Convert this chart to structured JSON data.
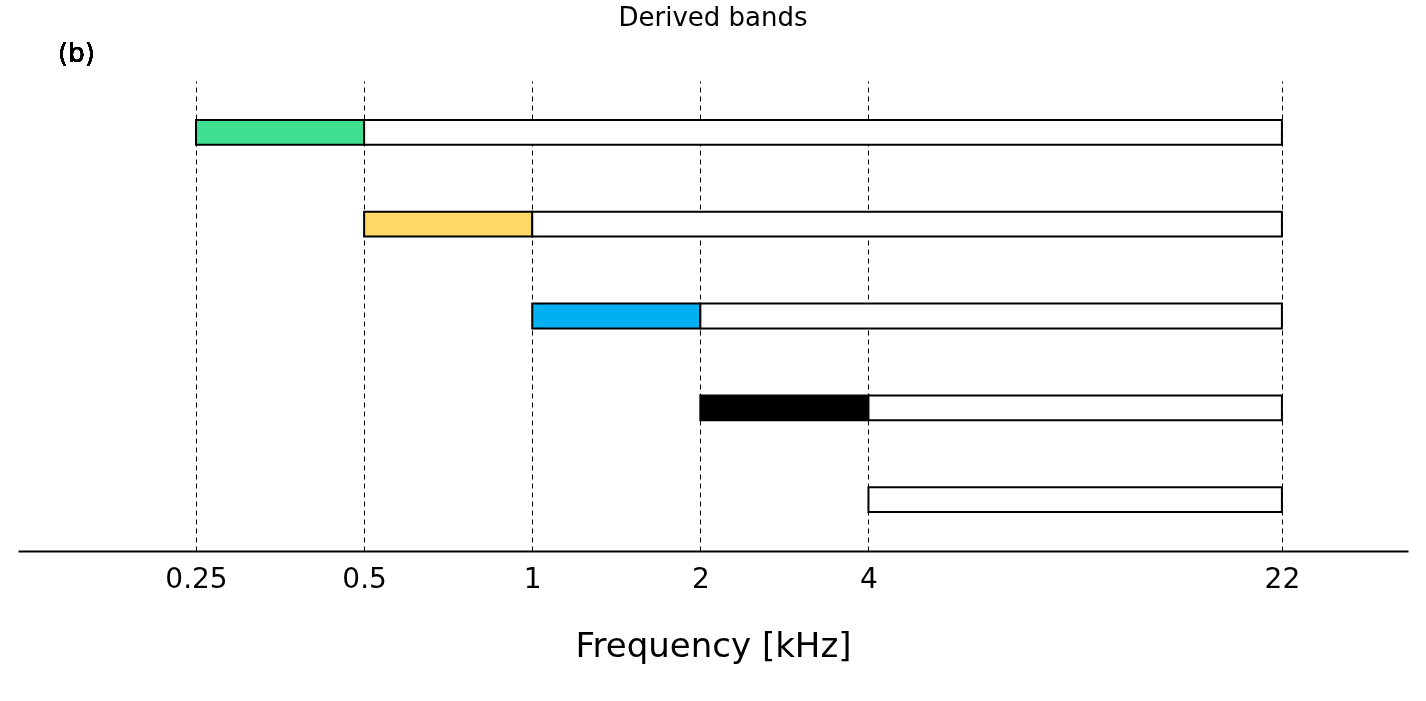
{
  "chart_data": {
    "type": "bar",
    "orientation": "horizontal",
    "title": "Derived bands",
    "xlabel": "Frequency [kHz]",
    "annotations": [
      "(b)"
    ],
    "categories": [
      null,
      null,
      null,
      null,
      null
    ],
    "series": [
      {
        "colors": [
          "#3ee08f",
          "#ffd966",
          "#00b0f0",
          "#000000",
          null
        ],
        "base": [
          0.25,
          0.5,
          1,
          2,
          null
        ],
        "values": [
          0.25,
          0.5,
          1,
          2,
          null
        ]
      },
      {
        "color": "#ffffff",
        "base": [
          0.5,
          1,
          2,
          4,
          4
        ],
        "values": [
          21.5,
          21,
          20,
          18,
          18
        ]
      }
    ],
    "log": "x",
    "xlim": [
      0.12,
      37
    ],
    "xticks": [
      0.25,
      0.5,
      1,
      2,
      4,
      22
    ],
    "tick_labels": "x",
    "grid": "x",
    "line_style": "dashed"
  }
}
